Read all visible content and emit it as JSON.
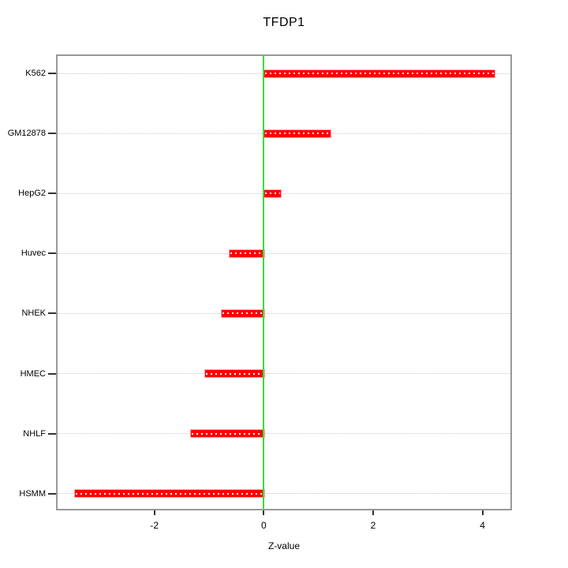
{
  "chart_data": {
    "type": "bar",
    "orientation": "horizontal",
    "title": "TFDP1",
    "xlabel": "Z-value",
    "categories": [
      "K562",
      "GM12878",
      "HepG2",
      "Huvec",
      "NHEK",
      "HMEC",
      "NHLF",
      "HSMM"
    ],
    "values": [
      4.2,
      1.2,
      0.3,
      -0.64,
      -0.79,
      -1.09,
      -1.35,
      -3.47
    ],
    "x_ticks": [
      -2,
      0,
      2,
      4
    ],
    "xlim": [
      -3.77,
      4.51
    ],
    "grid": true,
    "zero_reference_line": 0,
    "legend": "none",
    "colors": {
      "bar": "#ff0000",
      "bar_edge": "#ffaaaa",
      "bar_dots": "#ffffff",
      "zero_line": "#3ddc3d",
      "grid": "#c9c9c9",
      "box": "#999999",
      "text": "#000000"
    }
  }
}
